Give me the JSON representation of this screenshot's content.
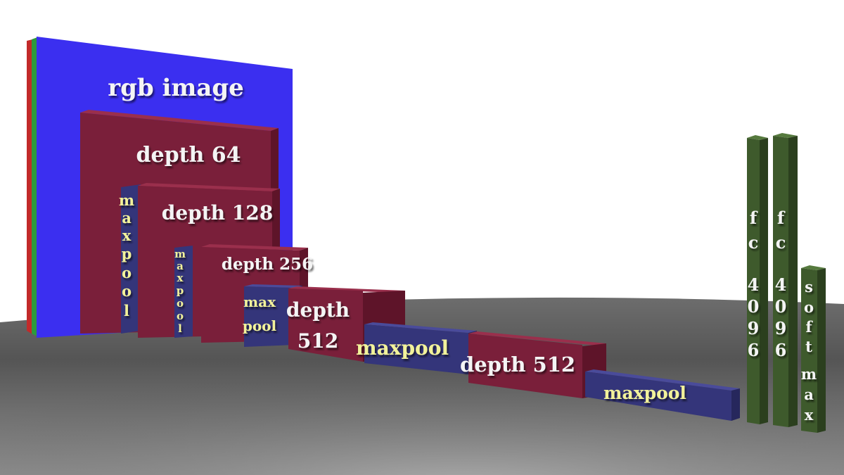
{
  "diagram": {
    "layers": {
      "input": "rgb image",
      "conv1": "depth 64",
      "pool1": [
        "m",
        "a",
        "x",
        "p",
        "o",
        "o",
        "l"
      ],
      "conv2": "depth 128",
      "pool2": [
        "m",
        "a",
        "x",
        "p",
        "o",
        "o",
        "l"
      ],
      "conv3": "depth 256",
      "pool3": [
        "max",
        "pool"
      ],
      "conv4": [
        "depth",
        "512"
      ],
      "pool4": "maxpool",
      "conv5": "depth 512",
      "pool5": "maxpool",
      "fc1": [
        "f",
        "c",
        "",
        "4",
        "0",
        "9",
        "6"
      ],
      "fc2": [
        "f",
        "c",
        "",
        "4",
        "0",
        "9",
        "6"
      ],
      "softmax": [
        "s",
        "o",
        "f",
        "t",
        "m",
        "a",
        "x"
      ]
    },
    "colors": {
      "input_blue": "#3b2ff0",
      "conv_maroon": "#7a1f3a",
      "pool_navy": "#34357a",
      "fc_green": "#3e5a2c",
      "label_white": "#f4f4f4",
      "label_yellow": "#f2f29a"
    }
  }
}
